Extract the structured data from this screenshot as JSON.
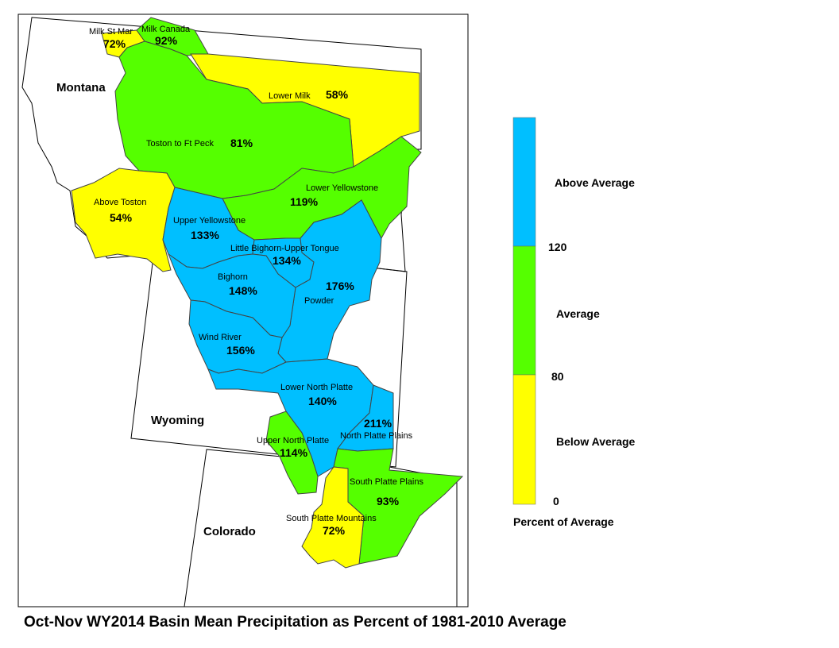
{
  "title": "Oct-Nov WY2014 Basin Mean Precipitation as Percent of 1981-2010 Average",
  "colors": {
    "above": "#00BFFF",
    "average": "#55FF00",
    "below": "#FFFF00",
    "outline": "#333333"
  },
  "states": [
    "Montana",
    "Wyoming",
    "Colorado"
  ],
  "basins": [
    {
      "name": "Milk St Mary",
      "label": "Milk St Mar",
      "value": "72%",
      "category": "below"
    },
    {
      "name": "Milk Canada",
      "label": "Milk Canada",
      "value": "92%",
      "category": "average"
    },
    {
      "name": "Lower Milk",
      "label": "Lower Milk",
      "value": "58%",
      "category": "below"
    },
    {
      "name": "Toston to Ft Peck",
      "label": "Toston to Ft Peck",
      "value": "81%",
      "category": "average"
    },
    {
      "name": "Above Toston",
      "label": "Above Toston",
      "value": "54%",
      "category": "below"
    },
    {
      "name": "Lower Yellowstone",
      "label": "Lower Yellowstone",
      "value": "119%",
      "category": "average"
    },
    {
      "name": "Upper Yellowstone",
      "label": "Upper Yellowstone",
      "value": "133%",
      "category": "above"
    },
    {
      "name": "Little Bighorn-Upper Tongue",
      "label": "Little Bighorn-Upper Tongue",
      "value": "134%",
      "category": "above"
    },
    {
      "name": "Bighorn",
      "label": "Bighorn",
      "value": "148%",
      "category": "above"
    },
    {
      "name": "Powder",
      "label": "Powder",
      "value": "176%",
      "category": "above"
    },
    {
      "name": "Wind River",
      "label": "Wind River",
      "value": "156%",
      "category": "above"
    },
    {
      "name": "Lower North Platte",
      "label": "Lower North Platte",
      "value": "140%",
      "category": "above"
    },
    {
      "name": "North Platte Plains",
      "label": "North Platte Plains",
      "value": "211%",
      "category": "above"
    },
    {
      "name": "Upper North Platte",
      "label": "Upper North Platte",
      "value": "114%",
      "category": "average"
    },
    {
      "name": "South Platte Plains",
      "label": "South Platte Plains",
      "value": "93%",
      "category": "average"
    },
    {
      "name": "South Platte Mountains",
      "label": "South Platte Mountains",
      "value": "72%",
      "category": "below"
    }
  ],
  "legend": {
    "title": "Percent of Average",
    "classes": [
      {
        "label": "Above Average",
        "color": "#00BFFF"
      },
      {
        "label": "Average",
        "color": "#55FF00"
      },
      {
        "label": "Below Average",
        "color": "#FFFF00"
      }
    ],
    "breaks": [
      "120",
      "80",
      "0"
    ]
  }
}
